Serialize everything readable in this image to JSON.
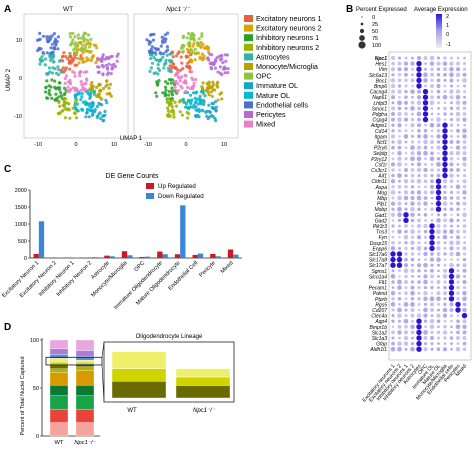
{
  "panel_letters": {
    "a": "A",
    "b": "B",
    "c": "C",
    "d": "D"
  },
  "panelA": {
    "titles": [
      "WT",
      "Npc1⁻/⁻"
    ],
    "ylabel": "UMAP 2",
    "xlabel": "UMAP 1",
    "xticks": [
      "-10",
      "0",
      "10",
      "-10",
      "0",
      "10"
    ],
    "yticks": [
      "10",
      "0",
      "-10"
    ],
    "legend": [
      {
        "label": "Excitatory neurons 1",
        "color": "#e8603c"
      },
      {
        "label": "Excitatory neurons 2",
        "color": "#d9a300"
      },
      {
        "label": "Inhibitory neurons 1",
        "color": "#2ca02c"
      },
      {
        "label": "Inhibitory neurons 2",
        "color": "#9ab300"
      },
      {
        "label": "Astrocytes",
        "color": "#2fb5a8"
      },
      {
        "label": "Monocyte/Microglia",
        "color": "#b8a000"
      },
      {
        "label": "OPC",
        "color": "#8fc43a"
      },
      {
        "label": "Immature OL",
        "color": "#1aa3c8"
      },
      {
        "label": "Mature OL",
        "color": "#00b8d4"
      },
      {
        "label": "Endothelial cells",
        "color": "#4a6fd1"
      },
      {
        "label": "Pericytes",
        "color": "#b36ad6"
      },
      {
        "label": "Mixed",
        "color": "#e87fc9"
      }
    ]
  },
  "panelB": {
    "size_title": "Percent Expressed",
    "size_values": [
      "0",
      "25",
      "50",
      "75",
      "100"
    ],
    "color_title": "Average Expression",
    "color_ticks": [
      "2",
      "1",
      "0",
      "-1"
    ],
    "genes": [
      "Npc1",
      "Hes1",
      "Vim",
      "Slc6a13",
      "Bnc1",
      "Bmp6",
      "Cacng4",
      "Nap61",
      "Lhfpl3",
      "Smoc1",
      "Pdgfra",
      "Cspg4",
      "Adgre1",
      "Cd14",
      "Itgam",
      "Ncf1",
      "P2ry6",
      "Selplg",
      "P2ry12",
      "Csf1r",
      "Cx3cr1",
      "Aif1",
      "Cldn11",
      "Aspa",
      "Mog",
      "Mbp",
      "Plp1",
      "Mobp",
      "Gad1",
      "Gad2",
      "Pik3r3",
      "Tns3",
      "Fyn",
      "Dusp15",
      "Enpp6",
      "Slc17a6",
      "Slc17a8",
      "Slc17a7",
      "Sgms1",
      "Slco1a4",
      "Flt1",
      "Pecam1",
      "Palmd",
      "Ptprb",
      "Rgs5",
      "Cd207",
      "Clec4a",
      "Aqp4",
      "Bmpr1b",
      "Slc1a2",
      "Slc1a3",
      "Gfap",
      "Aldh1l1"
    ],
    "celltypes": [
      "Excitatory neurons 1",
      "Excitatory neurons 2",
      "Inhibitory neurons 1",
      "Inhibitory neurons 2",
      "Astrocytes",
      "OPC",
      "Immature OL",
      "Mature OL",
      "Monocyte/Microglia",
      "Endothelial cells",
      "Pericytes",
      "Mixed"
    ]
  },
  "chart_data": {
    "type": "bar",
    "title": "DE Gene Counts",
    "ylabel": "",
    "ylim": [
      0,
      2000
    ],
    "yticks": [
      "0",
      "500",
      "1000",
      "1500",
      "2000"
    ],
    "categories": [
      "Excitatory Neuron 1",
      "Excitatory Neuron 2",
      "Inhibitory Neuron 1",
      "Inhibitory Neuron 2",
      "Astrocyte",
      "Monocyte/Microglia",
      "OPC",
      "Immature Oligodendrocyte",
      "Mature Oligodendrocyte",
      "Endothelial Cell",
      "Pericyte",
      "Mixed"
    ],
    "series": [
      {
        "name": "Up Regulated",
        "color": "#d0181f",
        "values": [
          120,
          8,
          5,
          15,
          70,
          200,
          30,
          190,
          110,
          90,
          120,
          250
        ]
      },
      {
        "name": "Down Regulated",
        "color": "#3a86d6",
        "values": [
          1080,
          10,
          15,
          25,
          50,
          80,
          40,
          110,
          1550,
          130,
          50,
          100
        ]
      }
    ]
  },
  "panelD": {
    "ylabel": "Percent of Total Nuclei Captured",
    "yticks": [
      "0",
      "50",
      "100"
    ],
    "groups": [
      "WT",
      "Npc1⁻/⁻"
    ],
    "inset_title": "Oligodendrocyte Lineage",
    "inset_groups": [
      "WT",
      "Npc1⁻/⁻"
    ],
    "segments": [
      {
        "name": "Excitatory neurons 1",
        "color": "#f4a49a",
        "wt": 14,
        "ko": 14
      },
      {
        "name": "Excitatory neurons 2",
        "color": "#e8443a",
        "wt": 14,
        "ko": 14
      },
      {
        "name": "Inhibitory neurons 1",
        "color": "#18a34a",
        "wt": 14,
        "ko": 14
      },
      {
        "name": "Inhibitory neurons 2",
        "color": "#0a7a35",
        "wt": 11,
        "ko": 11
      },
      {
        "name": "Astrocytes",
        "color": "#d99a00",
        "wt": 13,
        "ko": 15
      },
      {
        "name": "Monocyte/Microglia",
        "color": "#b8b000",
        "wt": 4,
        "ko": 4
      },
      {
        "name": "OPC",
        "color": "#6b6a00",
        "wt": 4,
        "ko": 3
      },
      {
        "name": "Immature OL",
        "color": "#cfd400",
        "wt": 3,
        "ko": 2
      },
      {
        "name": "Mature OL",
        "color": "#eef06a",
        "wt": 4,
        "ko": 2
      },
      {
        "name": "Endothelial cells",
        "color": "#5b8fe0",
        "wt": 4,
        "ko": 4
      },
      {
        "name": "Pericytes",
        "color": "#b07ad8",
        "wt": 6,
        "ko": 6
      },
      {
        "name": "Mixed",
        "color": "#e8a6e0",
        "wt": 9,
        "ko": 11
      }
    ]
  }
}
